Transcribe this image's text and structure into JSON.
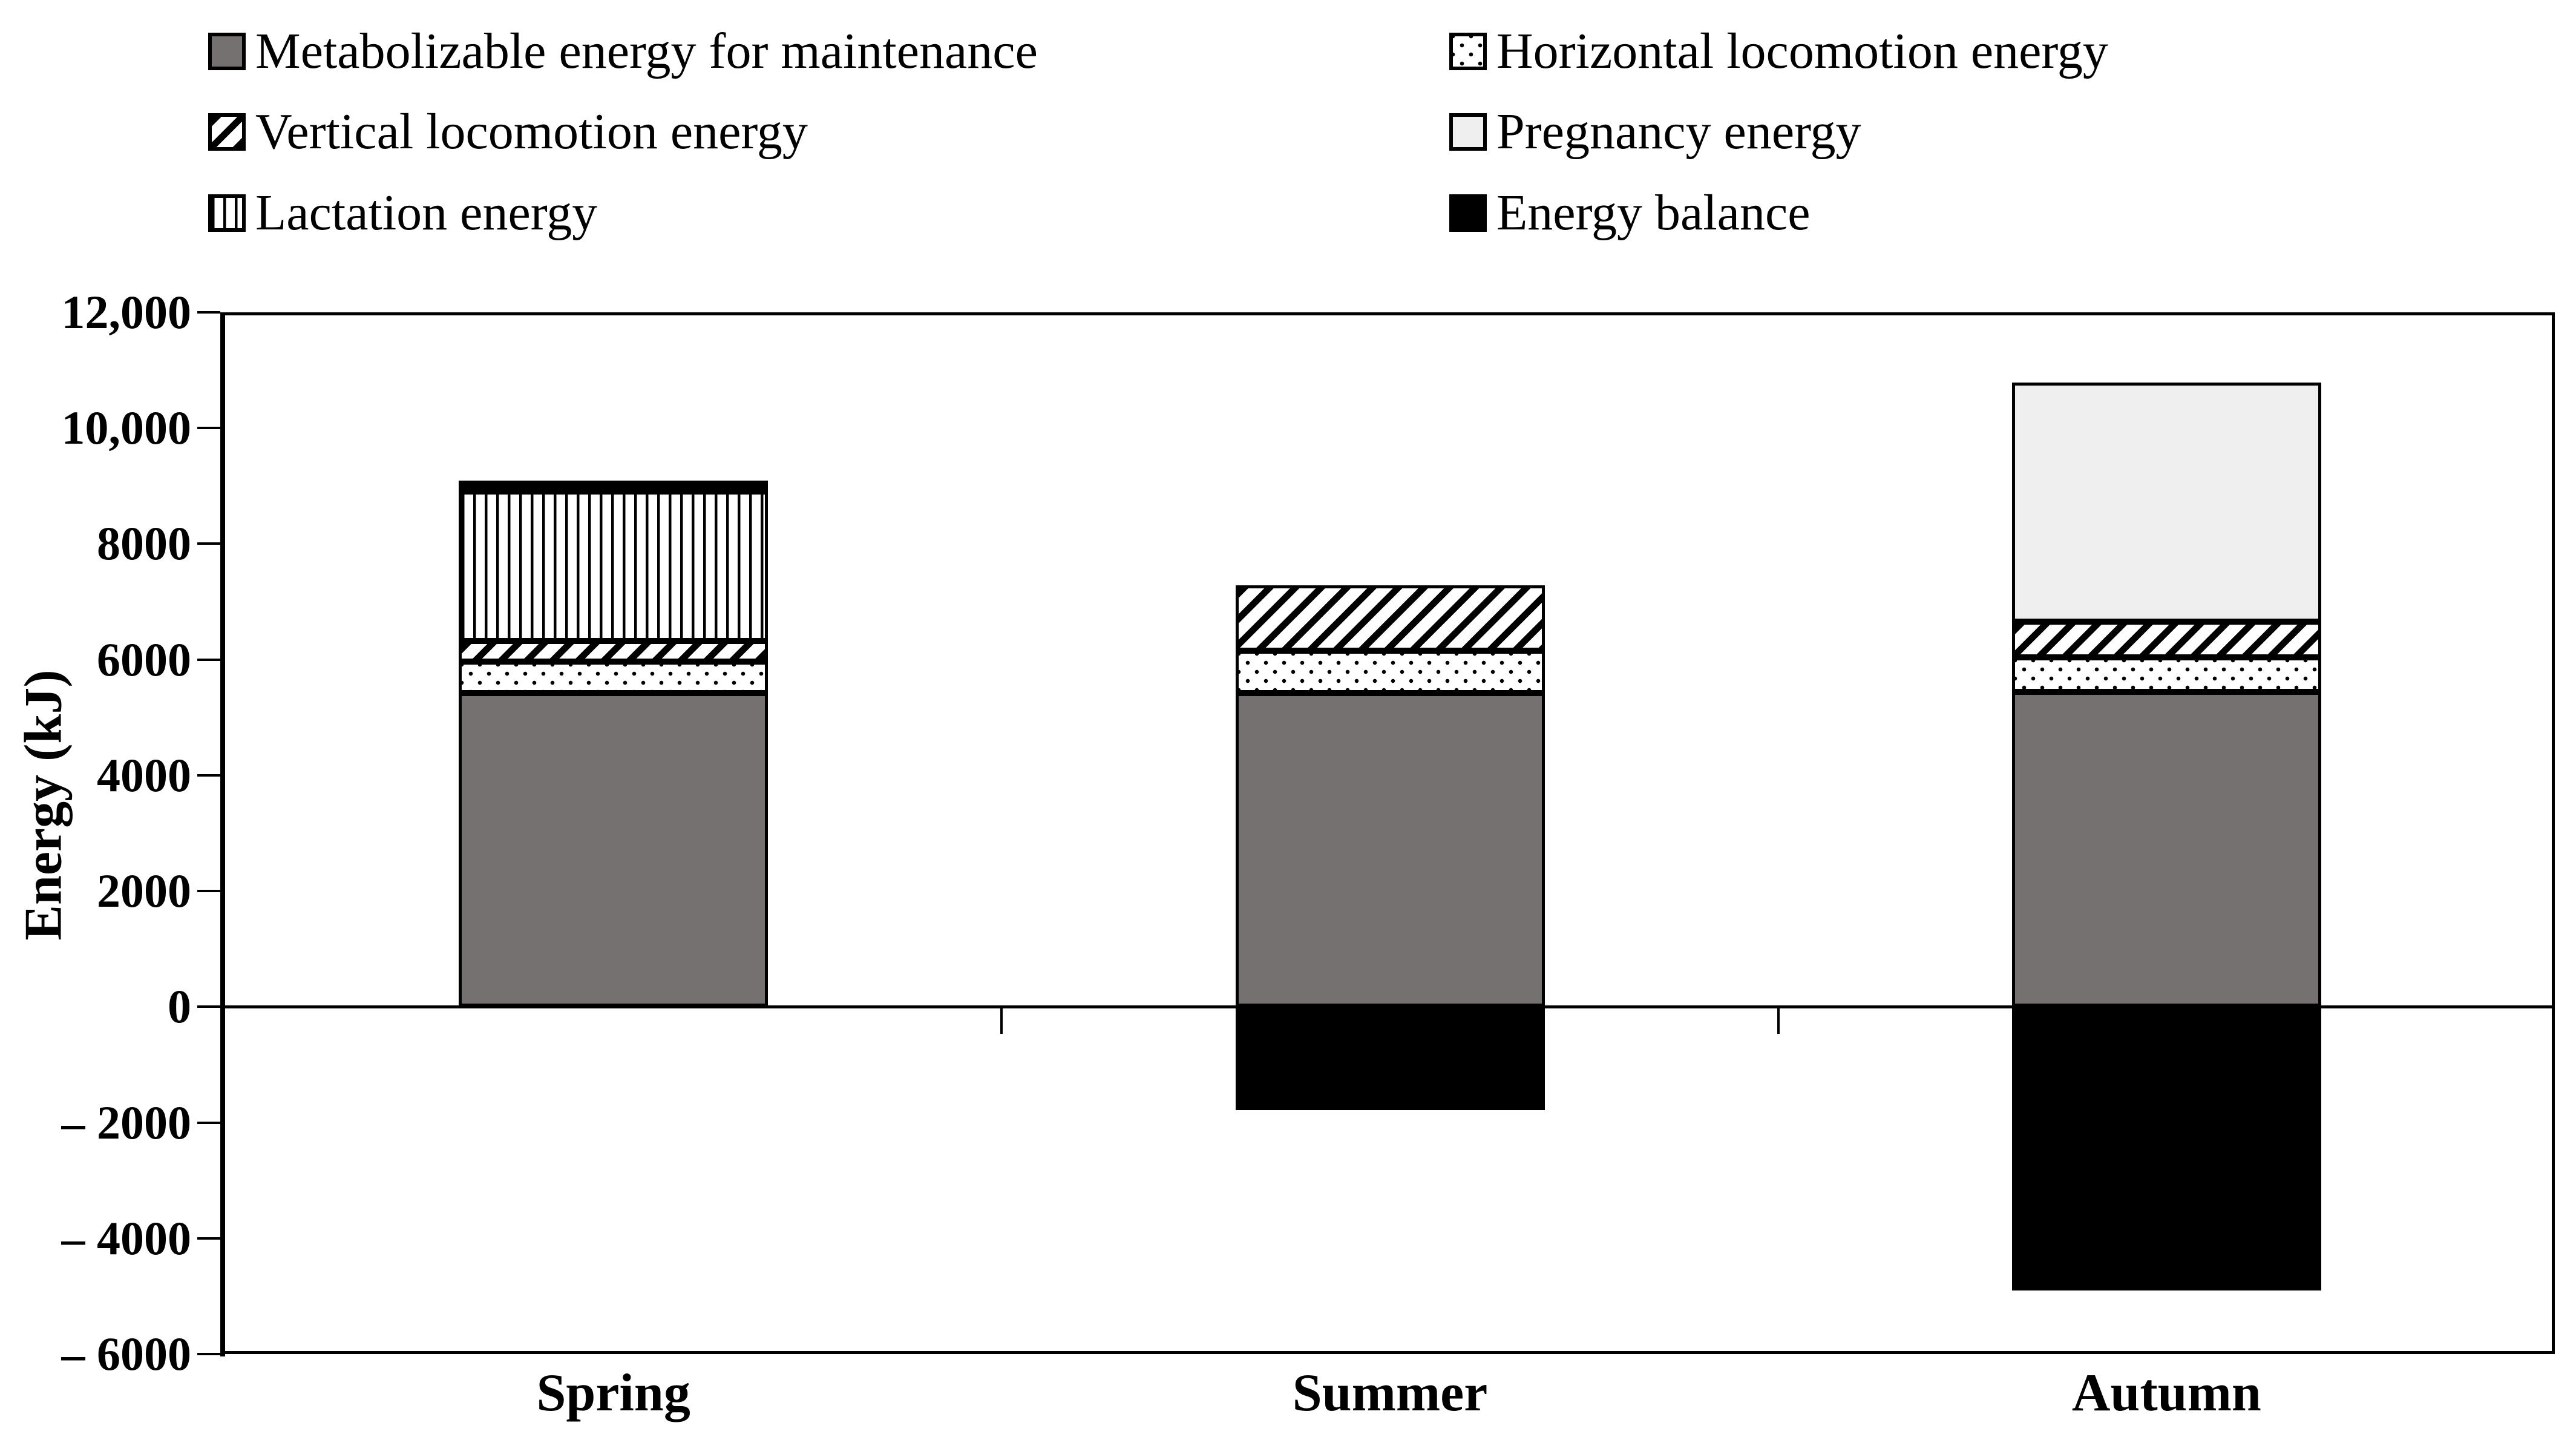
{
  "legend": {
    "items": [
      {
        "label": "Metabolizable energy for maintenance",
        "pattern": "solid-gray",
        "column": 0,
        "row": 0
      },
      {
        "label": "Horizontal locomotion energy",
        "pattern": "dots",
        "column": 1,
        "row": 0
      },
      {
        "label": "Vertical locomotion energy",
        "pattern": "hatch",
        "column": 0,
        "row": 1
      },
      {
        "label": "Pregnancy energy",
        "pattern": "light",
        "column": 1,
        "row": 1
      },
      {
        "label": "Lactation energy",
        "pattern": "vlines",
        "column": 0,
        "row": 2
      },
      {
        "label": "Energy balance",
        "pattern": "black",
        "column": 1,
        "row": 2
      }
    ]
  },
  "axis": {
    "ylabel": "Energy (kJ)",
    "y_ticks": [
      {
        "label": "12,000",
        "value": 12000
      },
      {
        "label": "10,000",
        "value": 10000
      },
      {
        "label": "8000",
        "value": 8000
      },
      {
        "label": "6000",
        "value": 6000
      },
      {
        "label": "4000",
        "value": 4000
      },
      {
        "label": "2000",
        "value": 2000
      },
      {
        "label": "0",
        "value": 0
      },
      {
        "label": "– 2000",
        "value": -2000
      },
      {
        "label": "– 4000",
        "value": -4000
      },
      {
        "label": "– 6000",
        "value": -6000
      }
    ]
  },
  "chart_data": {
    "type": "stacked-bar",
    "categories": [
      "Spring",
      "Summer",
      "Autumn"
    ],
    "series": [
      {
        "name": "Metabolizable energy for maintenance",
        "pattern": "solid-gray",
        "values": [
          5420,
          5420,
          5440
        ]
      },
      {
        "name": "Horizontal locomotion energy",
        "pattern": "dots",
        "values": [
          550,
          730,
          600
        ]
      },
      {
        "name": "Vertical locomotion energy",
        "pattern": "hatch",
        "values": [
          350,
          1130,
          620
        ]
      },
      {
        "name": "Pregnancy energy",
        "pattern": "light",
        "values": [
          0,
          0,
          4130
        ]
      },
      {
        "name": "Lactation energy",
        "pattern": "vlines",
        "values": [
          2580,
          0,
          0
        ]
      },
      {
        "name": "Energy balance",
        "pattern": "black",
        "values": [
          190,
          -1790,
          -4900
        ]
      }
    ],
    "bar_totals_positive": [
      9090,
      7300,
      10790
    ],
    "ylabel": "Energy (kJ)",
    "ylim": [
      -6000,
      12000
    ],
    "ytick_step": 2000,
    "legend_position": "top",
    "grid": false,
    "colors": {
      "maintenance_gray": "#767171",
      "pregnancy_light_gray": "#efefef",
      "balance_black": "#000000",
      "pattern_foreground": "#000000",
      "background": "#ffffff"
    }
  }
}
